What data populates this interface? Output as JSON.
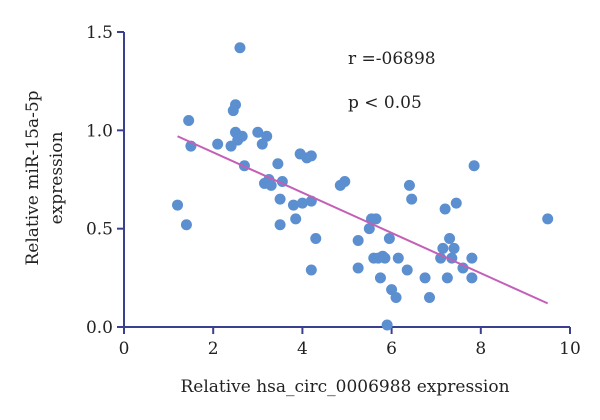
{
  "chart_data": {
    "type": "scatter",
    "title": "",
    "xlabel": "Relative hsa_circ_0006988 expression",
    "ylabel_lines": [
      "Relative miR-15a-5p",
      "expression"
    ],
    "xlim": [
      0,
      10
    ],
    "ylim": [
      0,
      1.5
    ],
    "x_ticks": [
      0,
      2,
      4,
      6,
      8,
      10
    ],
    "x_tick_labels": [
      "0",
      "2",
      "4",
      "6",
      "8",
      "10"
    ],
    "y_ticks": [
      0,
      0.5,
      1.0,
      1.5
    ],
    "y_tick_labels": [
      "0.0",
      "0.5",
      "1.0",
      "1.5"
    ],
    "grid": false,
    "legend": "none",
    "colors": {
      "points": "#5b8fd0",
      "fit_line": "#c45fb8",
      "axis": "#3b3f8f"
    },
    "annotations": [
      "r =-06898",
      "p < 0.05"
    ],
    "fit_line": {
      "x": [
        1.2,
        9.5
      ],
      "y": [
        0.97,
        0.12
      ]
    },
    "points": {
      "x": [
        1.2,
        1.4,
        1.45,
        1.5,
        2.1,
        2.4,
        2.45,
        2.5,
        2.5,
        2.55,
        2.6,
        2.65,
        2.7,
        3.0,
        3.1,
        3.15,
        3.2,
        3.25,
        3.3,
        3.45,
        3.5,
        3.5,
        3.55,
        3.8,
        3.85,
        3.95,
        4.0,
        4.1,
        4.2,
        4.2,
        4.2,
        4.3,
        4.85,
        4.95,
        5.25,
        5.25,
        5.5,
        5.55,
        5.6,
        5.65,
        5.7,
        5.75,
        5.8,
        5.85,
        5.9,
        5.95,
        6.0,
        6.1,
        6.15,
        6.35,
        6.4,
        6.45,
        6.75,
        6.85,
        7.1,
        7.15,
        7.2,
        7.25,
        7.3,
        7.35,
        7.4,
        7.45,
        7.6,
        7.8,
        7.8,
        7.85,
        9.5
      ],
      "y": [
        0.62,
        0.52,
        1.05,
        0.92,
        0.93,
        0.92,
        1.1,
        1.13,
        0.99,
        0.95,
        1.42,
        0.97,
        0.82,
        0.99,
        0.93,
        0.73,
        0.97,
        0.75,
        0.72,
        0.83,
        0.65,
        0.52,
        0.74,
        0.62,
        0.55,
        0.88,
        0.63,
        0.86,
        0.87,
        0.64,
        0.29,
        0.45,
        0.72,
        0.74,
        0.3,
        0.44,
        0.5,
        0.55,
        0.35,
        0.55,
        0.35,
        0.25,
        0.36,
        0.35,
        0.01,
        0.45,
        0.19,
        0.15,
        0.35,
        0.29,
        0.72,
        0.65,
        0.25,
        0.15,
        0.35,
        0.4,
        0.6,
        0.25,
        0.45,
        0.35,
        0.4,
        0.63,
        0.3,
        0.35,
        0.25,
        0.82,
        0.55
      ]
    }
  }
}
